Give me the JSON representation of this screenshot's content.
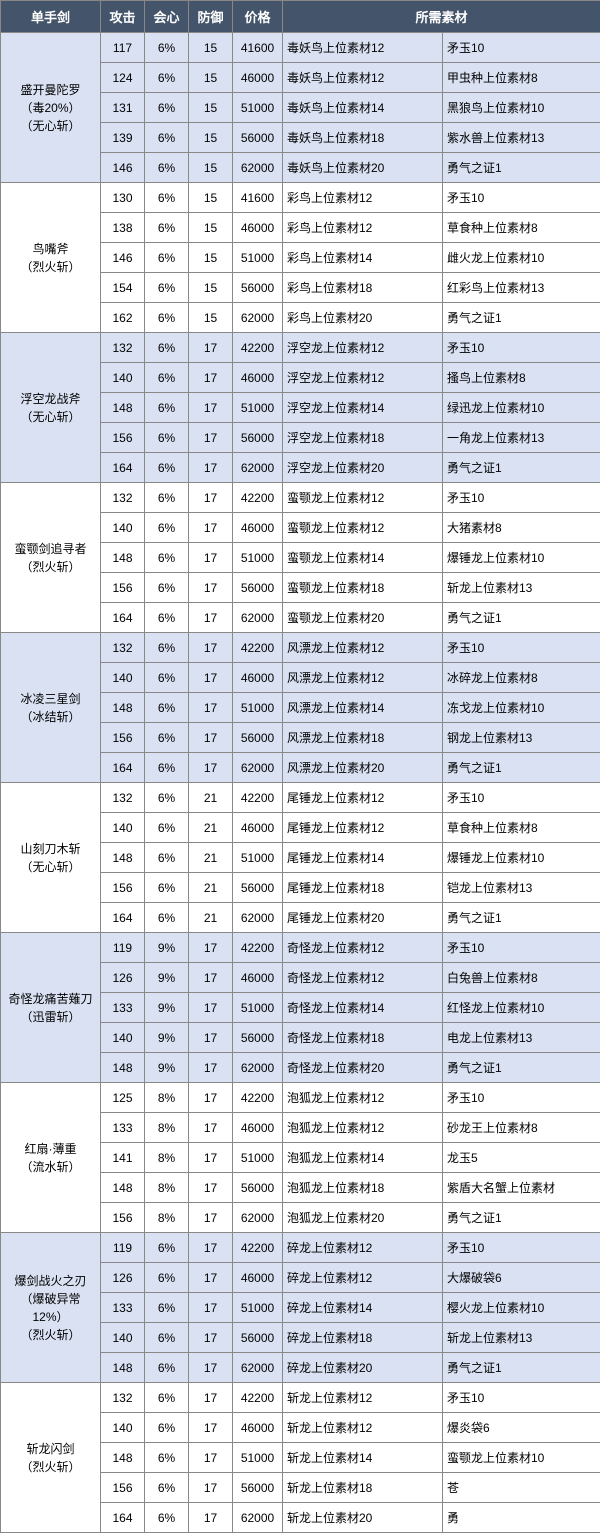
{
  "headers": {
    "c0": "单手剑",
    "c1": "攻击",
    "c2": "会心",
    "c3": "防御",
    "c4": "价格",
    "c5": "所需素材"
  },
  "col_widths": {
    "c0": 100,
    "c1": 44,
    "c2": 44,
    "c3": 44,
    "c4": 50,
    "c5a": 160,
    "c5b": 158
  },
  "groups": [
    {
      "name": "盛开曼陀罗\n（毒20%）\n（无心斩）",
      "shaded": true,
      "rows": [
        {
          "atk": 117,
          "crit": "6%",
          "def": 15,
          "price": 41600,
          "m1": "毒妖鸟上位素材12",
          "m2": "矛玉10"
        },
        {
          "atk": 124,
          "crit": "6%",
          "def": 15,
          "price": 46000,
          "m1": "毒妖鸟上位素材12",
          "m2": "甲虫种上位素材8"
        },
        {
          "atk": 131,
          "crit": "6%",
          "def": 15,
          "price": 51000,
          "m1": "毒妖鸟上位素材14",
          "m2": "黑狼鸟上位素材10"
        },
        {
          "atk": 139,
          "crit": "6%",
          "def": 15,
          "price": 56000,
          "m1": "毒妖鸟上位素材18",
          "m2": "紫水兽上位素材13"
        },
        {
          "atk": 146,
          "crit": "6%",
          "def": 15,
          "price": 62000,
          "m1": "毒妖鸟上位素材20",
          "m2": "勇气之证1"
        }
      ]
    },
    {
      "name": "鸟嘴斧\n（烈火斩）",
      "shaded": false,
      "rows": [
        {
          "atk": 130,
          "crit": "6%",
          "def": 15,
          "price": 41600,
          "m1": "彩鸟上位素材12",
          "m2": "矛玉10"
        },
        {
          "atk": 138,
          "crit": "6%",
          "def": 15,
          "price": 46000,
          "m1": "彩鸟上位素材12",
          "m2": "草食种上位素材8"
        },
        {
          "atk": 146,
          "crit": "6%",
          "def": 15,
          "price": 51000,
          "m1": "彩鸟上位素材14",
          "m2": "雌火龙上位素材10"
        },
        {
          "atk": 154,
          "crit": "6%",
          "def": 15,
          "price": 56000,
          "m1": "彩鸟上位素材18",
          "m2": "红彩鸟上位素材13"
        },
        {
          "atk": 162,
          "crit": "6%",
          "def": 15,
          "price": 62000,
          "m1": "彩鸟上位素材20",
          "m2": "勇气之证1"
        }
      ]
    },
    {
      "name": "浮空龙战斧\n（无心斩）",
      "shaded": true,
      "rows": [
        {
          "atk": 132,
          "crit": "6%",
          "def": 17,
          "price": 42200,
          "m1": "浮空龙上位素材12",
          "m2": "矛玉10"
        },
        {
          "atk": 140,
          "crit": "6%",
          "def": 17,
          "price": 46000,
          "m1": "浮空龙上位素材12",
          "m2": "搔鸟上位素材8"
        },
        {
          "atk": 148,
          "crit": "6%",
          "def": 17,
          "price": 51000,
          "m1": "浮空龙上位素材14",
          "m2": "绿迅龙上位素材10"
        },
        {
          "atk": 156,
          "crit": "6%",
          "def": 17,
          "price": 56000,
          "m1": "浮空龙上位素材18",
          "m2": "一角龙上位素材13"
        },
        {
          "atk": 164,
          "crit": "6%",
          "def": 17,
          "price": 62000,
          "m1": "浮空龙上位素材20",
          "m2": "勇气之证1"
        }
      ]
    },
    {
      "name": "蛮颚剑追寻者\n（烈火斩）",
      "shaded": false,
      "rows": [
        {
          "atk": 132,
          "crit": "6%",
          "def": 17,
          "price": 42200,
          "m1": "蛮颚龙上位素材12",
          "m2": "矛玉10"
        },
        {
          "atk": 140,
          "crit": "6%",
          "def": 17,
          "price": 46000,
          "m1": "蛮颚龙上位素材12",
          "m2": "大猪素材8"
        },
        {
          "atk": 148,
          "crit": "6%",
          "def": 17,
          "price": 51000,
          "m1": "蛮颚龙上位素材14",
          "m2": "爆锤龙上位素材10"
        },
        {
          "atk": 156,
          "crit": "6%",
          "def": 17,
          "price": 56000,
          "m1": "蛮颚龙上位素材18",
          "m2": "斩龙上位素材13"
        },
        {
          "atk": 164,
          "crit": "6%",
          "def": 17,
          "price": 62000,
          "m1": "蛮颚龙上位素材20",
          "m2": "勇气之证1"
        }
      ]
    },
    {
      "name": "冰凌三星剑\n（冰结斩）",
      "shaded": true,
      "rows": [
        {
          "atk": 132,
          "crit": "6%",
          "def": 17,
          "price": 42200,
          "m1": "风漂龙上位素材12",
          "m2": "矛玉10"
        },
        {
          "atk": 140,
          "crit": "6%",
          "def": 17,
          "price": 46000,
          "m1": "风漂龙上位素材12",
          "m2": "冰碎龙上位素材8"
        },
        {
          "atk": 148,
          "crit": "6%",
          "def": 17,
          "price": 51000,
          "m1": "风漂龙上位素材14",
          "m2": "冻戈龙上位素材10"
        },
        {
          "atk": 156,
          "crit": "6%",
          "def": 17,
          "price": 56000,
          "m1": "风漂龙上位素材18",
          "m2": "钢龙上位素材13"
        },
        {
          "atk": 164,
          "crit": "6%",
          "def": 17,
          "price": 62000,
          "m1": "风漂龙上位素材20",
          "m2": "勇气之证1"
        }
      ]
    },
    {
      "name": "山刻刀木斩\n（无心斩）",
      "shaded": false,
      "rows": [
        {
          "atk": 132,
          "crit": "6%",
          "def": 21,
          "price": 42200,
          "m1": "尾锤龙上位素材12",
          "m2": "矛玉10"
        },
        {
          "atk": 140,
          "crit": "6%",
          "def": 21,
          "price": 46000,
          "m1": "尾锤龙上位素材12",
          "m2": "草食种上位素材8"
        },
        {
          "atk": 148,
          "crit": "6%",
          "def": 21,
          "price": 51000,
          "m1": "尾锤龙上位素材14",
          "m2": "爆锤龙上位素材10"
        },
        {
          "atk": 156,
          "crit": "6%",
          "def": 21,
          "price": 56000,
          "m1": "尾锤龙上位素材18",
          "m2": "铠龙上位素材13"
        },
        {
          "atk": 164,
          "crit": "6%",
          "def": 21,
          "price": 62000,
          "m1": "尾锤龙上位素材20",
          "m2": "勇气之证1"
        }
      ]
    },
    {
      "name": "奇怪龙痛苦薙刀\n（迅雷斩）",
      "shaded": true,
      "rows": [
        {
          "atk": 119,
          "crit": "9%",
          "def": 17,
          "price": 42200,
          "m1": "奇怪龙上位素材12",
          "m2": "矛玉10"
        },
        {
          "atk": 126,
          "crit": "9%",
          "def": 17,
          "price": 46000,
          "m1": "奇怪龙上位素材12",
          "m2": "白兔兽上位素材8"
        },
        {
          "atk": 133,
          "crit": "9%",
          "def": 17,
          "price": 51000,
          "m1": "奇怪龙上位素材14",
          "m2": "红怪龙上位素材10"
        },
        {
          "atk": 140,
          "crit": "9%",
          "def": 17,
          "price": 56000,
          "m1": "奇怪龙上位素材18",
          "m2": "电龙上位素材13"
        },
        {
          "atk": 148,
          "crit": "9%",
          "def": 17,
          "price": 62000,
          "m1": "奇怪龙上位素材20",
          "m2": "勇气之证1"
        }
      ]
    },
    {
      "name": "红扇·薄重\n（流水斩）",
      "shaded": false,
      "rows": [
        {
          "atk": 125,
          "crit": "8%",
          "def": 17,
          "price": 42200,
          "m1": "泡狐龙上位素材12",
          "m2": "矛玉10"
        },
        {
          "atk": 133,
          "crit": "8%",
          "def": 17,
          "price": 46000,
          "m1": "泡狐龙上位素材12",
          "m2": "砂龙王上位素材8"
        },
        {
          "atk": 141,
          "crit": "8%",
          "def": 17,
          "price": 51000,
          "m1": "泡狐龙上位素材14",
          "m2": "龙玉5"
        },
        {
          "atk": 148,
          "crit": "8%",
          "def": 17,
          "price": 56000,
          "m1": "泡狐龙上位素材18",
          "m2": "紫盾大名蟹上位素材"
        },
        {
          "atk": 156,
          "crit": "8%",
          "def": 17,
          "price": 62000,
          "m1": "泡狐龙上位素材20",
          "m2": "勇气之证1"
        }
      ]
    },
    {
      "name": "爆剑战火之刃\n（爆破异常12%）\n（烈火斩）",
      "shaded": true,
      "rows": [
        {
          "atk": 119,
          "crit": "6%",
          "def": 17,
          "price": 42200,
          "m1": "碎龙上位素材12",
          "m2": "矛玉10"
        },
        {
          "atk": 126,
          "crit": "6%",
          "def": 17,
          "price": 46000,
          "m1": "碎龙上位素材12",
          "m2": "大爆破袋6"
        },
        {
          "atk": 133,
          "crit": "6%",
          "def": 17,
          "price": 51000,
          "m1": "碎龙上位素材14",
          "m2": "樱火龙上位素材10"
        },
        {
          "atk": 140,
          "crit": "6%",
          "def": 17,
          "price": 56000,
          "m1": "碎龙上位素材18",
          "m2": "斩龙上位素材13"
        },
        {
          "atk": 148,
          "crit": "6%",
          "def": 17,
          "price": 62000,
          "m1": "碎龙上位素材20",
          "m2": "勇气之证1"
        }
      ]
    },
    {
      "name": "斩龙闪剑\n（烈火斩）",
      "shaded": false,
      "rows": [
        {
          "atk": 132,
          "crit": "6%",
          "def": 17,
          "price": 42200,
          "m1": "斩龙上位素材12",
          "m2": "矛玉10"
        },
        {
          "atk": 140,
          "crit": "6%",
          "def": 17,
          "price": 46000,
          "m1": "斩龙上位素材12",
          "m2": "爆炎袋6"
        },
        {
          "atk": 148,
          "crit": "6%",
          "def": 17,
          "price": 51000,
          "m1": "斩龙上位素材14",
          "m2": "蛮颚龙上位素材10"
        },
        {
          "atk": 156,
          "crit": "6%",
          "def": 17,
          "price": 56000,
          "m1": "斩龙上位素材18",
          "m2": "苍"
        },
        {
          "atk": 164,
          "crit": "6%",
          "def": 17,
          "price": 62000,
          "m1": "斩龙上位素材20",
          "m2": "勇"
        }
      ]
    }
  ],
  "colors": {
    "header_bg": "#44546a",
    "header_fg": "#ffffff",
    "shade_bg": "#d9e1f2",
    "border": "#888888"
  }
}
